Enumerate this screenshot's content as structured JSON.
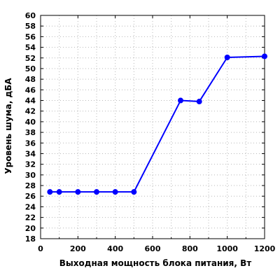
{
  "chart_data": {
    "type": "line",
    "title": "",
    "xlabel": "Выходная мощность блока питания, Вт",
    "ylabel": "Уровень шума, дБА",
    "xlim": [
      0,
      1200
    ],
    "ylim": [
      18,
      60
    ],
    "x_ticks": [
      0,
      200,
      400,
      600,
      800,
      1000,
      1200
    ],
    "y_ticks": [
      18,
      20,
      22,
      24,
      26,
      28,
      30,
      32,
      34,
      36,
      38,
      40,
      42,
      44,
      46,
      48,
      50,
      52,
      54,
      56,
      58,
      60
    ],
    "x_minor_step": 100,
    "grid": true,
    "grid_style": "dotted",
    "legend": "none",
    "series": [
      {
        "x": [
          50,
          100,
          200,
          300,
          400,
          500,
          750,
          850,
          1000,
          1200
        ],
        "y": [
          26.8,
          26.8,
          26.8,
          26.8,
          26.8,
          26.8,
          44.0,
          43.8,
          52.1,
          52.3
        ],
        "color": "#0000ff"
      }
    ]
  }
}
